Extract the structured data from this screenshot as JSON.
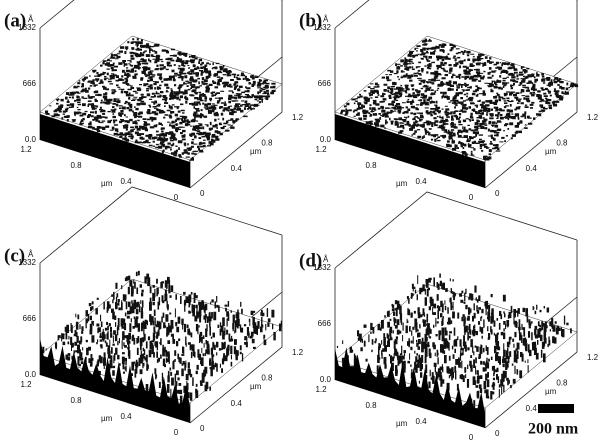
{
  "panels": [
    {
      "label": "(a)",
      "z_unit": "Å",
      "z_ticks": [
        "1332",
        "666",
        "0.0"
      ],
      "x_ticks": [
        "1.2",
        "0.8",
        "0.4",
        "0"
      ],
      "x_unit": "µm",
      "y_ticks": [
        "0",
        "0.4",
        "0.8",
        "1.2"
      ],
      "y_unit": "µm"
    },
    {
      "label": "(b)",
      "z_unit": "Å",
      "z_ticks": [
        "1332",
        "666",
        "0.0"
      ],
      "x_ticks": [
        "1.2",
        "0.8",
        "0.4",
        "0"
      ],
      "x_unit": "µm",
      "y_ticks": [
        "0",
        "0.4",
        "0.8",
        "1.2"
      ],
      "y_unit": "µm"
    },
    {
      "label": "(c)",
      "z_unit": "Å",
      "z_ticks": [
        "1332",
        "666",
        "0.0"
      ],
      "x_ticks": [
        "1.2",
        "0.8",
        "0.4",
        "0"
      ],
      "x_unit": "µm",
      "y_ticks": [
        "0",
        "0.4",
        "0.8",
        "1.2"
      ],
      "y_unit": "µm"
    },
    {
      "label": "(d)",
      "z_unit": "Å",
      "z_ticks": [
        "1332",
        "666",
        "0.0"
      ],
      "x_ticks": [
        "1.2",
        "0.8",
        "0.4",
        "0"
      ],
      "x_unit": "µm",
      "y_ticks": [
        "0",
        "0.4",
        "0.8",
        "1.2"
      ],
      "y_unit": "µm"
    }
  ],
  "scale_bar": {
    "label": "200 nm"
  }
}
